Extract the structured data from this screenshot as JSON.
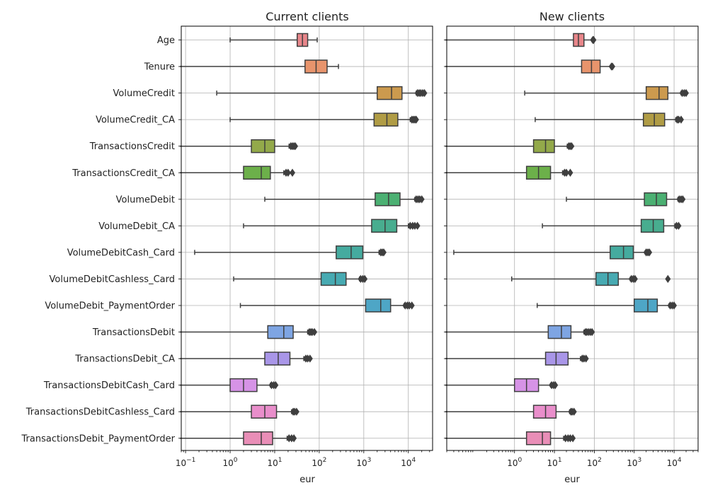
{
  "chart_data": [
    {
      "type": "box",
      "orientation": "horizontal",
      "title": "Current clients",
      "xlabel": "eur",
      "xscale": "log",
      "xlim": [
        0.08,
        35000
      ],
      "xticks": [
        {
          "value": 0.1,
          "base": "10",
          "exp": "−1"
        },
        {
          "value": 1,
          "base": "10",
          "exp": "0"
        },
        {
          "value": 10,
          "base": "10",
          "exp": "1"
        },
        {
          "value": 100,
          "base": "10",
          "exp": "2"
        },
        {
          "value": 1000,
          "base": "10",
          "exp": "3"
        },
        {
          "value": 10000,
          "base": "10",
          "exp": "4"
        }
      ],
      "grid": true,
      "categories": [
        "Age",
        "Tenure",
        "VolumeCredit",
        "VolumeCredit_CA",
        "TransactionsCredit",
        "TransactionsCredit_CA",
        "VolumeDebit",
        "VolumeDebit_CA",
        "VolumeDebitCash_Card",
        "VolumeDebitCashless_Card",
        "VolumeDebit_PaymentOrder",
        "TransactionsDebit",
        "TransactionsDebit_CA",
        "TransactionsDebitCash_Card",
        "TransactionsDebitCashless_Card",
        "TransactionsDebit_PaymentOrder"
      ],
      "boxes": [
        {
          "min": 1,
          "q1": 32,
          "median": 42,
          "q3": 55,
          "max": 90,
          "fliers": []
        },
        {
          "min": 0.075,
          "q1": 48,
          "median": 85,
          "q3": 150,
          "max": 270,
          "fliers": []
        },
        {
          "min": 0.5,
          "q1": 2000,
          "median": 4200,
          "q3": 7200,
          "max": 15000,
          "fliers": [
            16000,
            17500,
            19000,
            21000,
            23000
          ]
        },
        {
          "min": 1,
          "q1": 1700,
          "median": 3300,
          "q3": 5800,
          "max": 11000,
          "fliers": [
            12000,
            13000,
            14000,
            15000
          ]
        },
        {
          "min": 0.075,
          "q1": 3,
          "median": 6,
          "q3": 10,
          "max": 21,
          "fliers": [
            23,
            25,
            27,
            29
          ]
        },
        {
          "min": 0.075,
          "q1": 2,
          "median": 5,
          "q3": 8,
          "max": 16,
          "fliers": [
            18,
            20,
            25
          ]
        },
        {
          "min": 6,
          "q1": 1800,
          "median": 3600,
          "q3": 6500,
          "max": 14000,
          "fliers": [
            15000,
            16500,
            18000,
            20000
          ]
        },
        {
          "min": 2,
          "q1": 1500,
          "median": 3000,
          "q3": 5500,
          "max": 10000,
          "fliers": [
            11000,
            12500,
            14000,
            16000
          ]
        },
        {
          "min": 0.16,
          "q1": 240,
          "median": 520,
          "q3": 950,
          "max": 2200,
          "fliers": [
            2400,
            2600,
            2800
          ]
        },
        {
          "min": 1.2,
          "q1": 110,
          "median": 230,
          "q3": 400,
          "max": 800,
          "fliers": [
            850,
            950,
            1050
          ]
        },
        {
          "min": 1.7,
          "q1": 1100,
          "median": 2400,
          "q3": 4000,
          "max": 8000,
          "fliers": [
            8500,
            9500,
            10500,
            12000
          ]
        },
        {
          "min": 0.075,
          "q1": 7,
          "median": 16,
          "q3": 26,
          "max": 55,
          "fliers": [
            60,
            65,
            70,
            78
          ]
        },
        {
          "min": 0.075,
          "q1": 6,
          "median": 12,
          "q3": 22,
          "max": 45,
          "fliers": [
            50,
            55,
            62
          ]
        },
        {
          "min": 0.075,
          "q1": 1,
          "median": 2,
          "q3": 4,
          "max": 8,
          "fliers": [
            8.5,
            9.5,
            10.5
          ]
        },
        {
          "min": 0.075,
          "q1": 3,
          "median": 6,
          "q3": 11,
          "max": 24,
          "fliers": [
            26,
            28,
            31
          ]
        },
        {
          "min": 0.075,
          "q1": 2,
          "median": 5,
          "q3": 9,
          "max": 19,
          "fliers": [
            21,
            24,
            27
          ]
        }
      ]
    },
    {
      "type": "box",
      "orientation": "horizontal",
      "title": "New clients",
      "xlabel": "eur",
      "xscale": "log",
      "xlim": [
        0.02,
        40000
      ],
      "xticks": [
        {
          "value": 1,
          "base": "10",
          "exp": "0"
        },
        {
          "value": 10,
          "base": "10",
          "exp": "1"
        },
        {
          "value": 100,
          "base": "10",
          "exp": "2"
        },
        {
          "value": 1000,
          "base": "10",
          "exp": "3"
        },
        {
          "value": 10000,
          "base": "10",
          "exp": "4"
        }
      ],
      "grid": true,
      "categories": [
        "Age",
        "Tenure",
        "VolumeCredit",
        "VolumeCredit_CA",
        "TransactionsCredit",
        "TransactionsCredit_CA",
        "VolumeDebit",
        "VolumeDebit_CA",
        "VolumeDebitCash_Card",
        "VolumeDebitCashless_Card",
        "VolumeDebit_PaymentOrder",
        "TransactionsDebit",
        "TransactionsDebit_CA",
        "TransactionsDebitCash_Card",
        "TransactionsDebitCashless_Card",
        "TransactionsDebit_PaymentOrder"
      ],
      "boxes": [
        {
          "min": 0.018,
          "q1": 30,
          "median": 40,
          "q3": 55,
          "max": 88,
          "fliers": [
            92,
            96
          ]
        },
        {
          "min": 0.018,
          "q1": 48,
          "median": 85,
          "q3": 140,
          "max": 260,
          "fliers": [
            270,
            285
          ]
        },
        {
          "min": 1.8,
          "q1": 2000,
          "median": 4200,
          "q3": 7000,
          "max": 15000,
          "fliers": [
            16000,
            18000,
            20000
          ]
        },
        {
          "min": 3.3,
          "q1": 1700,
          "median": 3200,
          "q3": 5800,
          "max": 11000,
          "fliers": [
            12000,
            13000,
            15000
          ]
        },
        {
          "min": 0.018,
          "q1": 3,
          "median": 6,
          "q3": 10,
          "max": 21,
          "fliers": [
            23,
            25,
            27
          ]
        },
        {
          "min": 0.018,
          "q1": 2,
          "median": 4,
          "q3": 8,
          "max": 16,
          "fliers": [
            18,
            20,
            25
          ]
        },
        {
          "min": 20,
          "q1": 1800,
          "median": 3600,
          "q3": 6500,
          "max": 12500,
          "fliers": [
            13500,
            15000,
            16500
          ]
        },
        {
          "min": 5,
          "q1": 1500,
          "median": 3000,
          "q3": 5500,
          "max": 10500,
          "fliers": [
            11500,
            13000
          ]
        },
        {
          "min": 0.03,
          "q1": 250,
          "median": 540,
          "q3": 950,
          "max": 1900,
          "fliers": [
            2000,
            2200,
            2400
          ]
        },
        {
          "min": 0.85,
          "q1": 110,
          "median": 220,
          "q3": 400,
          "max": 800,
          "fliers": [
            850,
            950,
            1050,
            7000
          ]
        },
        {
          "min": 3.7,
          "q1": 1000,
          "median": 2200,
          "q3": 3800,
          "max": 7500,
          "fliers": [
            8000,
            9000,
            10000
          ]
        },
        {
          "min": 0.018,
          "q1": 7,
          "median": 15,
          "q3": 26,
          "max": 55,
          "fliers": [
            60,
            65,
            72,
            80,
            88
          ]
        },
        {
          "min": 0.018,
          "q1": 6,
          "median": 11,
          "q3": 22,
          "max": 45,
          "fliers": [
            50,
            55,
            62
          ]
        },
        {
          "min": 0.018,
          "q1": 1,
          "median": 2,
          "q3": 4,
          "max": 8,
          "fliers": [
            8.5,
            9.5,
            10.5
          ]
        },
        {
          "min": 0.018,
          "q1": 3,
          "median": 6,
          "q3": 11,
          "max": 24,
          "fliers": [
            26,
            28,
            31
          ]
        },
        {
          "min": 0.018,
          "q1": 2,
          "median": 5,
          "q3": 8,
          "max": 17,
          "fliers": [
            19,
            22,
            25,
            29
          ]
        }
      ]
    }
  ],
  "colors": [
    "#e8868a",
    "#e8946c",
    "#cc9a4e",
    "#b09c45",
    "#93a94a",
    "#6cb04a",
    "#4bb072",
    "#48ad8f",
    "#45ab9f",
    "#47aab2",
    "#4ea6c6",
    "#7ea5e3",
    "#a996e8",
    "#d693e6",
    "#e98ecb",
    "#e98eb7"
  ],
  "grid_color": "#b0b0b0",
  "line_color": "#3f3f3f"
}
